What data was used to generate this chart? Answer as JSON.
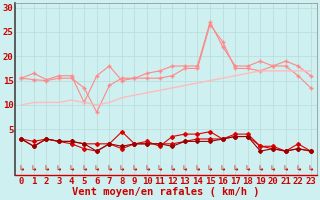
{
  "x": [
    0,
    1,
    2,
    3,
    4,
    5,
    6,
    7,
    8,
    9,
    10,
    11,
    12,
    13,
    14,
    15,
    16,
    17,
    18,
    19,
    20,
    21,
    22,
    23
  ],
  "series": [
    {
      "name": "rafales_high",
      "color": "#ff8888",
      "lw": 0.8,
      "marker": "+",
      "ms": 3,
      "values": [
        15.5,
        16.5,
        15.2,
        16.0,
        16.0,
        10.5,
        16.0,
        18.0,
        15.0,
        15.5,
        16.5,
        17.0,
        18.0,
        18.0,
        18.0,
        27.0,
        22.0,
        18.0,
        18.0,
        19.0,
        18.0,
        18.0,
        16.0,
        13.5
      ]
    },
    {
      "name": "rafales_mid",
      "color": "#ff8888",
      "lw": 0.8,
      "marker": "+",
      "ms": 3,
      "values": [
        15.5,
        15.2,
        15.0,
        15.5,
        15.5,
        13.5,
        8.5,
        14.0,
        15.5,
        15.5,
        15.5,
        15.5,
        16.0,
        17.5,
        17.5,
        26.5,
        23.0,
        17.5,
        17.5,
        17.0,
        18.0,
        19.0,
        18.0,
        16.0
      ]
    },
    {
      "name": "vent_smooth",
      "color": "#ffbbbb",
      "lw": 1.0,
      "marker": null,
      "ms": 0,
      "values": [
        10.0,
        10.5,
        10.5,
        10.5,
        11.0,
        10.5,
        10.0,
        10.5,
        11.5,
        12.0,
        12.5,
        13.0,
        13.5,
        14.0,
        14.5,
        15.0,
        15.5,
        16.0,
        16.5,
        17.0,
        17.0,
        17.0,
        17.0,
        17.0
      ]
    },
    {
      "name": "vent_moyen_high",
      "color": "#dd0000",
      "lw": 0.8,
      "marker": "D",
      "ms": 2.0,
      "values": [
        3.0,
        1.5,
        3.0,
        2.5,
        2.0,
        1.0,
        0.5,
        2.0,
        4.5,
        2.0,
        2.5,
        1.5,
        3.5,
        4.0,
        4.0,
        4.5,
        3.0,
        4.0,
        4.0,
        1.5,
        1.0,
        0.5,
        2.0,
        0.5
      ]
    },
    {
      "name": "vent_moyen_mid",
      "color": "#dd0000",
      "lw": 0.8,
      "marker": "D",
      "ms": 2.0,
      "values": [
        3.0,
        2.5,
        3.0,
        2.5,
        2.5,
        2.0,
        2.0,
        2.0,
        1.0,
        2.0,
        2.0,
        2.0,
        2.0,
        2.5,
        3.0,
        3.0,
        3.0,
        3.5,
        3.5,
        1.5,
        1.5,
        0.5,
        1.0,
        0.5
      ]
    },
    {
      "name": "vent_moyen_low",
      "color": "#990000",
      "lw": 0.8,
      "marker": "D",
      "ms": 2.0,
      "values": [
        3.0,
        1.5,
        3.0,
        2.5,
        2.5,
        2.0,
        0.5,
        2.0,
        1.5,
        2.0,
        2.0,
        2.0,
        1.5,
        2.5,
        2.5,
        2.5,
        3.0,
        3.5,
        3.5,
        0.5,
        1.0,
        0.5,
        1.0,
        0.5
      ]
    }
  ],
  "arrow_symbol": "↳",
  "arrow_color": "#cc0000",
  "arrow_fontsize": 5.5,
  "xlabel": "Vent moyen/en rafales ( km/h )",
  "xlabel_color": "#cc0000",
  "xlabel_fontsize": 7.5,
  "xtick_labels": [
    "0",
    "1",
    "2",
    "3",
    "4",
    "5",
    "6",
    "7",
    "8",
    "9",
    "10",
    "11",
    "12",
    "13",
    "14",
    "15",
    "16",
    "17",
    "18",
    "19",
    "20",
    "21",
    "22",
    "23"
  ],
  "ytick_labels": [
    "5",
    "10",
    "15",
    "20",
    "25",
    "30"
  ],
  "yticks": [
    5,
    10,
    15,
    20,
    25,
    30
  ],
  "xlim": [
    -0.5,
    23.5
  ],
  "ylim": [
    -4.5,
    31
  ],
  "bg_color": "#cff0f0",
  "grid_color": "#bbdddd",
  "tick_color": "#cc0000",
  "tick_fontsize": 6.5,
  "spine_color": "#888888"
}
